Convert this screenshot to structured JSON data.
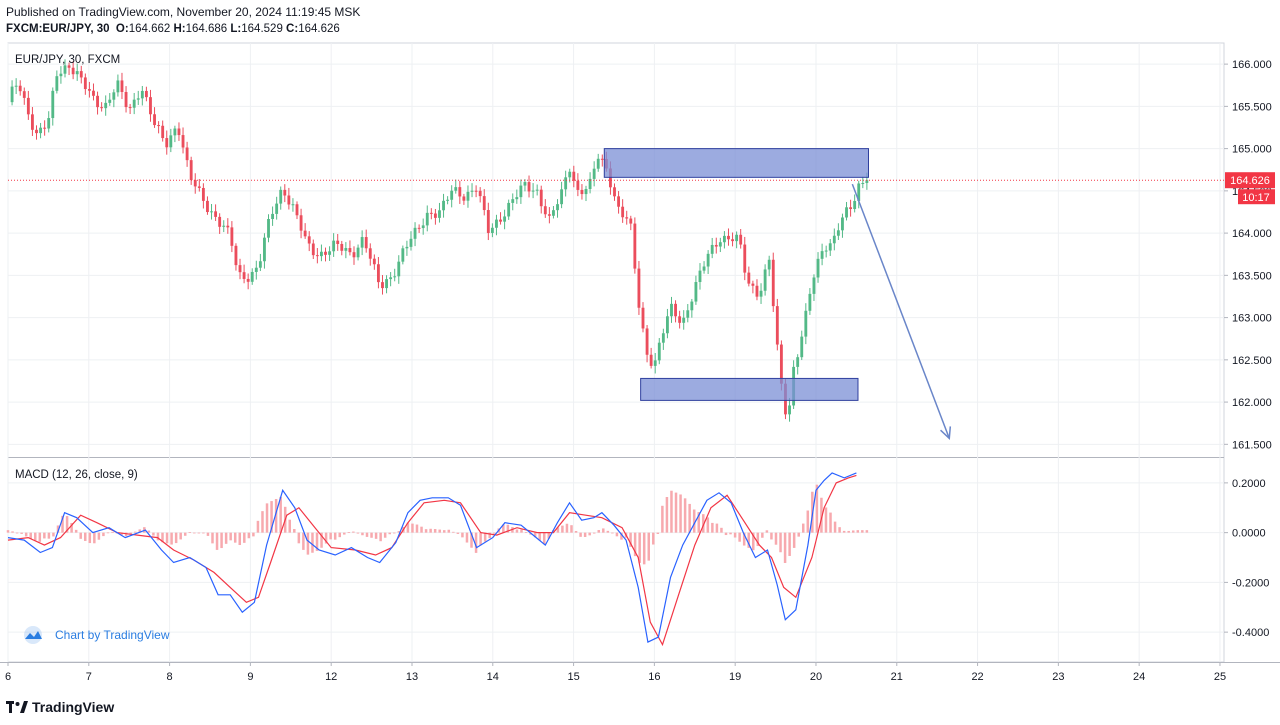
{
  "header": {
    "published": "Published on TradingView.com, November 20, 2024 11:19:45 MSK",
    "symbol": "FXCM:EUR/JPY, 30",
    "o_label": "O:",
    "o_value": "164.662",
    "h_label": "H:",
    "h_value": "164.686",
    "l_label": "L:",
    "l_value": "164.529",
    "c_label": "C:",
    "c_value": "164.626"
  },
  "footer": {
    "brand": "TradingView",
    "badge": "Chart by TradingView"
  },
  "colors": {
    "up": "#53b987",
    "down": "#eb4d5c",
    "zone": "#7b8fd6",
    "zone_border": "#2f3f9e",
    "macd": "#2962ff",
    "signal": "#f23645",
    "arrow": "#6a86c9",
    "grid": "#eef0f3"
  },
  "chart_data": [
    {
      "type": "candlestick",
      "title": "EUR/JPY, 30, FXCM",
      "ylim": [
        161.35,
        166.25
      ],
      "y_ticks": [
        "166.000",
        "165.500",
        "165.000",
        "164.500",
        "164.000",
        "163.500",
        "163.000",
        "162.500",
        "162.000",
        "161.500"
      ],
      "y_tick_values": [
        166.0,
        165.5,
        165.0,
        164.5,
        164.0,
        163.5,
        163.0,
        162.5,
        162.0,
        161.5
      ],
      "x_ticks": [
        "6",
        "7",
        "8",
        "9",
        "12",
        "13",
        "14",
        "15",
        "16",
        "19",
        "20",
        "21",
        "22",
        "23",
        "24",
        "25"
      ],
      "x_tick_index": [
        0,
        1,
        2,
        3,
        4,
        5,
        6,
        7,
        8,
        9,
        10,
        11,
        12,
        13,
        14,
        15
      ],
      "x_range": [
        0,
        15.05
      ],
      "last_price": "164.626",
      "last_price_value": 164.626,
      "countdown": "10:17",
      "path": [
        [
          0.0,
          165.55
        ],
        [
          0.12,
          165.8
        ],
        [
          0.25,
          165.45
        ],
        [
          0.35,
          165.15
        ],
        [
          0.5,
          165.3
        ],
        [
          0.6,
          165.9
        ],
        [
          0.75,
          166.0
        ],
        [
          0.9,
          165.8
        ],
        [
          1.05,
          165.6
        ],
        [
          1.2,
          165.5
        ],
        [
          1.35,
          165.75
        ],
        [
          1.5,
          165.45
        ],
        [
          1.65,
          165.75
        ],
        [
          1.8,
          165.3
        ],
        [
          1.95,
          165.05
        ],
        [
          2.1,
          165.3
        ],
        [
          2.25,
          164.65
        ],
        [
          2.45,
          164.35
        ],
        [
          2.6,
          164.15
        ],
        [
          2.75,
          163.95
        ],
        [
          2.85,
          163.5
        ],
        [
          3.0,
          163.5
        ],
        [
          3.1,
          163.6
        ],
        [
          3.25,
          164.2
        ],
        [
          3.4,
          164.55
        ],
        [
          3.55,
          164.25
        ],
        [
          3.7,
          163.85
        ],
        [
          3.85,
          163.75
        ],
        [
          4.05,
          163.85
        ],
        [
          4.25,
          163.75
        ],
        [
          4.4,
          163.95
        ],
        [
          4.5,
          163.65
        ],
        [
          4.6,
          163.35
        ],
        [
          4.75,
          163.5
        ],
        [
          4.9,
          163.8
        ],
        [
          5.05,
          164.0
        ],
        [
          5.2,
          164.25
        ],
        [
          5.35,
          164.25
        ],
        [
          5.5,
          164.5
        ],
        [
          5.65,
          164.45
        ],
        [
          5.8,
          164.55
        ],
        [
          5.95,
          164.0
        ],
        [
          6.1,
          164.2
        ],
        [
          6.25,
          164.4
        ],
        [
          6.4,
          164.55
        ],
        [
          6.55,
          164.5
        ],
        [
          6.7,
          164.15
        ],
        [
          6.85,
          164.45
        ],
        [
          6.95,
          164.8
        ],
        [
          7.05,
          164.5
        ],
        [
          7.2,
          164.55
        ],
        [
          7.3,
          164.9
        ],
        [
          7.42,
          164.75
        ],
        [
          7.55,
          164.3
        ],
        [
          7.7,
          164.1
        ],
        [
          7.8,
          163.2
        ],
        [
          7.9,
          162.6
        ],
        [
          8.0,
          162.45
        ],
        [
          8.1,
          162.8
        ],
        [
          8.2,
          163.1
        ],
        [
          8.35,
          162.95
        ],
        [
          8.5,
          163.35
        ],
        [
          8.65,
          163.7
        ],
        [
          8.8,
          163.95
        ],
        [
          8.95,
          163.95
        ],
        [
          9.05,
          163.9
        ],
        [
          9.15,
          163.4
        ],
        [
          9.3,
          163.3
        ],
        [
          9.42,
          163.7
        ],
        [
          9.55,
          162.3
        ],
        [
          9.65,
          161.75
        ],
        [
          9.72,
          162.4
        ],
        [
          9.85,
          162.9
        ],
        [
          9.95,
          163.4
        ],
        [
          10.1,
          163.85
        ],
        [
          10.2,
          163.9
        ],
        [
          10.3,
          164.15
        ],
        [
          10.45,
          164.3
        ],
        [
          10.55,
          164.6
        ],
        [
          10.63,
          164.64
        ]
      ],
      "zones": [
        {
          "x1": 7.38,
          "x2": 10.65,
          "y_low": 164.66,
          "y_high": 165.0
        },
        {
          "x1": 7.83,
          "x2": 10.52,
          "y_low": 162.02,
          "y_high": 162.28
        }
      ],
      "arrow": {
        "from": [
          10.45,
          164.58
        ],
        "to": [
          11.65,
          161.57
        ]
      }
    },
    {
      "type": "line",
      "title": "MACD (12, 26, close, 9)",
      "ylim": [
        -0.52,
        0.3
      ],
      "y_ticks": [
        "0.2000",
        "0.0000",
        "-0.2000",
        "-0.4000"
      ],
      "y_tick_values": [
        0.2,
        0.0,
        -0.2,
        -0.4
      ],
      "macd": [
        [
          0.0,
          -0.02
        ],
        [
          0.2,
          -0.03
        ],
        [
          0.4,
          -0.08
        ],
        [
          0.55,
          -0.06
        ],
        [
          0.7,
          0.08
        ],
        [
          0.85,
          0.06
        ],
        [
          1.05,
          0.0
        ],
        [
          1.25,
          0.02
        ],
        [
          1.45,
          -0.02
        ],
        [
          1.7,
          0.01
        ],
        [
          1.9,
          -0.07
        ],
        [
          2.05,
          -0.12
        ],
        [
          2.25,
          -0.1
        ],
        [
          2.45,
          -0.14
        ],
        [
          2.6,
          -0.25
        ],
        [
          2.75,
          -0.25
        ],
        [
          2.9,
          -0.32
        ],
        [
          3.05,
          -0.28
        ],
        [
          3.2,
          -0.05
        ],
        [
          3.4,
          0.17
        ],
        [
          3.55,
          0.1
        ],
        [
          3.7,
          -0.03
        ],
        [
          3.85,
          -0.07
        ],
        [
          4.05,
          -0.09
        ],
        [
          4.25,
          -0.06
        ],
        [
          4.45,
          -0.1
        ],
        [
          4.6,
          -0.12
        ],
        [
          4.8,
          -0.04
        ],
        [
          4.95,
          0.08
        ],
        [
          5.1,
          0.13
        ],
        [
          5.25,
          0.14
        ],
        [
          5.45,
          0.14
        ],
        [
          5.6,
          0.11
        ],
        [
          5.8,
          -0.06
        ],
        [
          6.0,
          -0.02
        ],
        [
          6.15,
          0.04
        ],
        [
          6.35,
          0.03
        ],
        [
          6.5,
          -0.01
        ],
        [
          6.65,
          -0.05
        ],
        [
          6.8,
          0.04
        ],
        [
          6.95,
          0.12
        ],
        [
          7.1,
          0.05
        ],
        [
          7.25,
          0.06
        ],
        [
          7.35,
          0.08
        ],
        [
          7.5,
          0.03
        ],
        [
          7.65,
          -0.03
        ],
        [
          7.8,
          -0.22
        ],
        [
          7.92,
          -0.44
        ],
        [
          8.05,
          -0.42
        ],
        [
          8.2,
          -0.18
        ],
        [
          8.35,
          -0.05
        ],
        [
          8.5,
          0.04
        ],
        [
          8.65,
          0.13
        ],
        [
          8.8,
          0.16
        ],
        [
          8.95,
          0.12
        ],
        [
          9.1,
          0.0
        ],
        [
          9.25,
          -0.1
        ],
        [
          9.4,
          -0.07
        ],
        [
          9.52,
          -0.21
        ],
        [
          9.62,
          -0.35
        ],
        [
          9.75,
          -0.31
        ],
        [
          9.9,
          -0.05
        ],
        [
          10.0,
          0.17
        ],
        [
          10.1,
          0.21
        ],
        [
          10.2,
          0.24
        ],
        [
          10.35,
          0.22
        ],
        [
          10.5,
          0.24
        ]
      ],
      "signal": [
        [
          0.0,
          -0.03
        ],
        [
          0.25,
          -0.02
        ],
        [
          0.45,
          -0.05
        ],
        [
          0.65,
          -0.02
        ],
        [
          0.9,
          0.07
        ],
        [
          1.1,
          0.04
        ],
        [
          1.35,
          0.0
        ],
        [
          1.6,
          -0.01
        ],
        [
          1.85,
          -0.02
        ],
        [
          2.05,
          -0.07
        ],
        [
          2.3,
          -0.11
        ],
        [
          2.55,
          -0.16
        ],
        [
          2.75,
          -0.22
        ],
        [
          2.95,
          -0.28
        ],
        [
          3.1,
          -0.26
        ],
        [
          3.25,
          -0.12
        ],
        [
          3.45,
          0.07
        ],
        [
          3.6,
          0.1
        ],
        [
          3.8,
          0.02
        ],
        [
          4.0,
          -0.06
        ],
        [
          4.3,
          -0.07
        ],
        [
          4.55,
          -0.09
        ],
        [
          4.75,
          -0.06
        ],
        [
          4.95,
          0.04
        ],
        [
          5.15,
          0.12
        ],
        [
          5.4,
          0.13
        ],
        [
          5.6,
          0.12
        ],
        [
          5.85,
          0.0
        ],
        [
          6.05,
          -0.01
        ],
        [
          6.3,
          0.02
        ],
        [
          6.55,
          0.0
        ],
        [
          6.75,
          0.0
        ],
        [
          6.95,
          0.08
        ],
        [
          7.15,
          0.07
        ],
        [
          7.35,
          0.06
        ],
        [
          7.6,
          0.02
        ],
        [
          7.8,
          -0.1
        ],
        [
          7.95,
          -0.36
        ],
        [
          8.1,
          -0.45
        ],
        [
          8.3,
          -0.25
        ],
        [
          8.5,
          -0.05
        ],
        [
          8.7,
          0.1
        ],
        [
          8.9,
          0.15
        ],
        [
          9.1,
          0.05
        ],
        [
          9.3,
          -0.05
        ],
        [
          9.45,
          -0.1
        ],
        [
          9.6,
          -0.22
        ],
        [
          9.75,
          -0.26
        ],
        [
          9.95,
          -0.1
        ],
        [
          10.1,
          0.1
        ],
        [
          10.25,
          0.2
        ],
        [
          10.4,
          0.22
        ],
        [
          10.5,
          0.23
        ]
      ]
    }
  ]
}
